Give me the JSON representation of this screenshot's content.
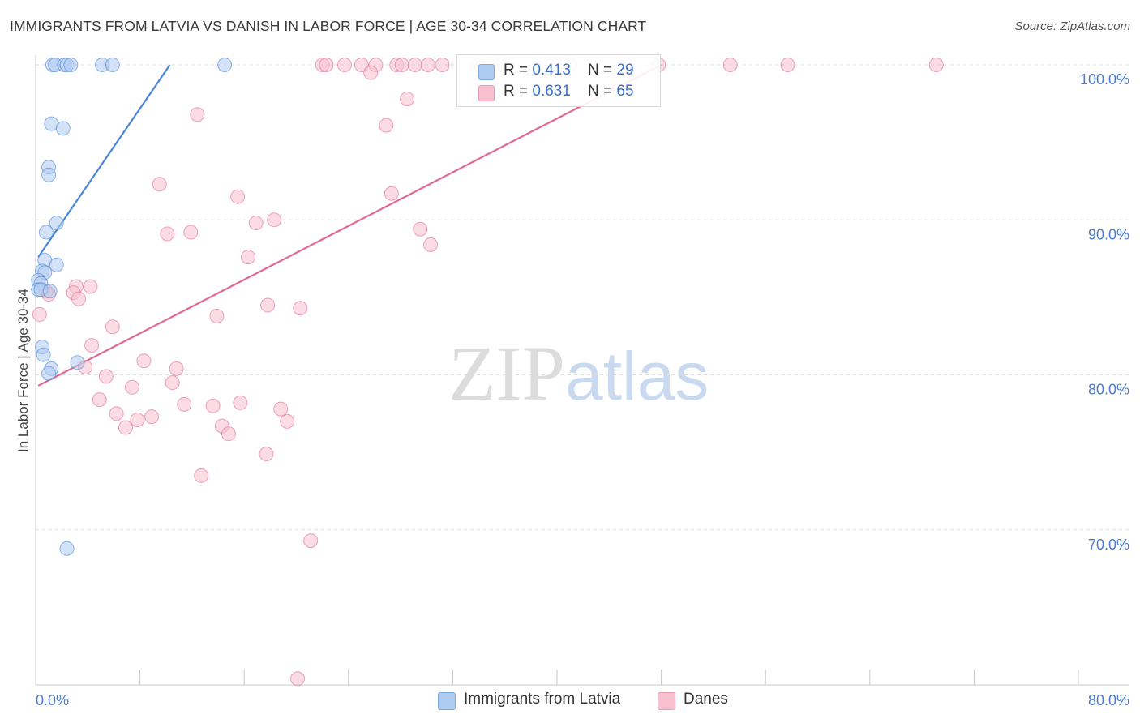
{
  "header": {
    "title": "IMMIGRANTS FROM LATVIA VS DANISH IN LABOR FORCE | AGE 30-34 CORRELATION CHART",
    "source": "Source: ZipAtlas.com"
  },
  "watermark": {
    "zip": "ZIP",
    "atlas": "atlas"
  },
  "legend_box": {
    "rows": [
      {
        "r_label": "R = ",
        "r_value": "0.413",
        "n_label": "N = ",
        "n_value": "29",
        "color": "#aecbf1"
      },
      {
        "r_label": "R = ",
        "r_value": "0.631",
        "n_label": "N = ",
        "n_value": "65",
        "color": "#f7bfd0"
      }
    ]
  },
  "bottom_legend": {
    "items": [
      {
        "label": "Immigrants from Latvia",
        "color": "#aecbf1"
      },
      {
        "label": "Danes",
        "color": "#f7bfd0"
      }
    ]
  },
  "chart_data": {
    "type": "scatter",
    "title": "IMMIGRANTS FROM LATVIA VS DANISH IN LABOR FORCE | AGE 30-34 CORRELATION CHART",
    "xlabel": "",
    "ylabel": "In Labor Force | Age 30-34",
    "xlim": [
      0,
      80
    ],
    "ylim": [
      60,
      100
    ],
    "x_tick_labels": [
      "0.0%",
      "80.0%"
    ],
    "y_ticks": [
      70,
      80,
      90,
      100
    ],
    "y_tick_labels": [
      "70.0%",
      "80.0%",
      "90.0%",
      "100.0%"
    ],
    "grid": "horizontal dashed",
    "legend": "bottom-center",
    "series": [
      {
        "name": "Immigrants from Latvia",
        "color": "#4a86d8",
        "fill": "#aecbf1",
        "r": 0.413,
        "n": 29,
        "points": [
          [
            1.3,
            100
          ],
          [
            1.5,
            100
          ],
          [
            2.2,
            100
          ],
          [
            2.4,
            100
          ],
          [
            2.7,
            100
          ],
          [
            5.1,
            100
          ],
          [
            5.9,
            100
          ],
          [
            14.5,
            100
          ],
          [
            1.2,
            96.2
          ],
          [
            2.1,
            95.9
          ],
          [
            1.0,
            93.4
          ],
          [
            1.0,
            92.9
          ],
          [
            1.6,
            89.8
          ],
          [
            0.8,
            89.2
          ],
          [
            0.7,
            87.4
          ],
          [
            1.6,
            87.1
          ],
          [
            0.5,
            86.7
          ],
          [
            0.7,
            86.6
          ],
          [
            0.2,
            86.1
          ],
          [
            0.4,
            85.9
          ],
          [
            0.2,
            85.5
          ],
          [
            0.4,
            85.5
          ],
          [
            1.1,
            85.4
          ],
          [
            0.5,
            81.8
          ],
          [
            0.6,
            81.3
          ],
          [
            3.2,
            80.8
          ],
          [
            1.2,
            80.4
          ],
          [
            1.0,
            80.1
          ],
          [
            2.4,
            68.8
          ]
        ],
        "trendline": [
          [
            0.2,
            87.6
          ],
          [
            10.3,
            100
          ]
        ]
      },
      {
        "name": "Danes",
        "color": "#e06a92",
        "fill": "#f7bfd0",
        "r": 0.631,
        "n": 65,
        "points": [
          [
            22.0,
            100
          ],
          [
            22.3,
            100
          ],
          [
            23.7,
            100
          ],
          [
            25.0,
            100
          ],
          [
            26.1,
            100
          ],
          [
            27.7,
            100
          ],
          [
            28.1,
            100
          ],
          [
            29.1,
            100
          ],
          [
            30.1,
            100
          ],
          [
            31.2,
            100
          ],
          [
            33.9,
            100
          ],
          [
            35.7,
            100
          ],
          [
            41.0,
            100
          ],
          [
            47.8,
            100
          ],
          [
            53.3,
            100
          ],
          [
            57.7,
            100
          ],
          [
            69.1,
            100
          ],
          [
            25.7,
            99.5
          ],
          [
            28.5,
            97.8
          ],
          [
            26.9,
            96.1
          ],
          [
            12.4,
            96.8
          ],
          [
            9.5,
            92.3
          ],
          [
            15.5,
            91.5
          ],
          [
            27.3,
            91.7
          ],
          [
            16.9,
            89.8
          ],
          [
            18.3,
            90.0
          ],
          [
            29.5,
            89.4
          ],
          [
            10.1,
            89.1
          ],
          [
            11.9,
            89.2
          ],
          [
            30.3,
            88.4
          ],
          [
            16.3,
            87.6
          ],
          [
            3.1,
            85.7
          ],
          [
            4.2,
            85.7
          ],
          [
            0.8,
            85.4
          ],
          [
            2.9,
            85.3
          ],
          [
            1.0,
            85.2
          ],
          [
            3.3,
            84.9
          ],
          [
            17.8,
            84.5
          ],
          [
            20.3,
            84.3
          ],
          [
            0.3,
            83.9
          ],
          [
            13.9,
            83.8
          ],
          [
            5.9,
            83.1
          ],
          [
            4.3,
            81.9
          ],
          [
            8.3,
            80.9
          ],
          [
            10.8,
            80.4
          ],
          [
            3.8,
            80.5
          ],
          [
            5.4,
            79.9
          ],
          [
            10.5,
            79.5
          ],
          [
            7.4,
            79.2
          ],
          [
            11.4,
            78.1
          ],
          [
            13.6,
            78.0
          ],
          [
            15.7,
            78.2
          ],
          [
            18.8,
            77.8
          ],
          [
            4.9,
            78.4
          ],
          [
            6.2,
            77.5
          ],
          [
            8.9,
            77.3
          ],
          [
            7.8,
            77.1
          ],
          [
            19.3,
            77.0
          ],
          [
            6.9,
            76.6
          ],
          [
            14.3,
            76.7
          ],
          [
            14.8,
            76.2
          ],
          [
            17.7,
            74.9
          ],
          [
            12.7,
            73.5
          ],
          [
            21.1,
            69.3
          ],
          [
            20.1,
            60.4
          ]
        ],
        "trendline": [
          [
            0.2,
            79.3
          ],
          [
            48.0,
            100
          ]
        ]
      }
    ]
  }
}
